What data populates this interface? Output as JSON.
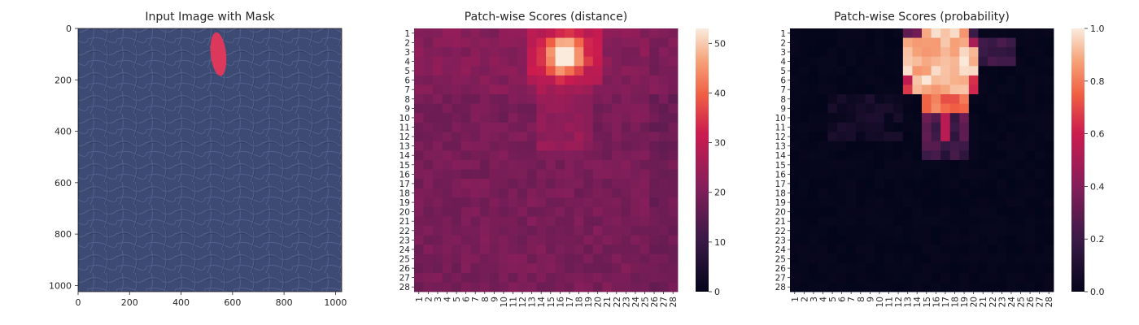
{
  "chart_data": [
    {
      "type": "image",
      "title": "Input Image with Mask",
      "xlim": [
        0,
        1024
      ],
      "ylim": [
        1024,
        0
      ],
      "x_ticks": [
        "0",
        "200",
        "400",
        "600",
        "800",
        "1000"
      ],
      "x_tick_values": [
        0,
        200,
        400,
        600,
        800,
        1000
      ],
      "y_ticks": [
        "0",
        "200",
        "400",
        "600",
        "800",
        "1000"
      ],
      "y_tick_values": [
        0,
        200,
        400,
        600,
        800,
        1000
      ],
      "image_color": "#3d4a74",
      "mask_color": "#e8365a",
      "mask_region": {
        "cx": 545,
        "cy": 100,
        "rx": 30,
        "ry": 85
      }
    },
    {
      "type": "heatmap",
      "title": "Patch-wise Scores (distance)",
      "x_labels": [
        "1",
        "2",
        "3",
        "4",
        "5",
        "6",
        "7",
        "8",
        "9",
        "10",
        "11",
        "12",
        "13",
        "14",
        "15",
        "16",
        "17",
        "18",
        "19",
        "20",
        "21",
        "22",
        "23",
        "24",
        "25",
        "26",
        "27",
        "28"
      ],
      "y_labels": [
        "1",
        "2",
        "3",
        "4",
        "5",
        "6",
        "7",
        "8",
        "9",
        "10",
        "11",
        "12",
        "13",
        "14",
        "15",
        "16",
        "17",
        "18",
        "19",
        "20",
        "21",
        "22",
        "23",
        "24",
        "25",
        "26",
        "27",
        "28"
      ],
      "colorbar": {
        "min": 0,
        "max": 53,
        "ticks": [
          0,
          10,
          20,
          30,
          40,
          50
        ],
        "tick_labels": [
          "0",
          "10",
          "20",
          "30",
          "40",
          "50"
        ]
      },
      "values_description": "Mostly 18-24 across the grid; hot region near columns 13-19, rows 1-7 peaking ~53 at (row 3, col 16)."
    },
    {
      "type": "heatmap",
      "title": "Patch-wise Scores (probability)",
      "x_labels": [
        "1",
        "2",
        "3",
        "4",
        "5",
        "6",
        "7",
        "8",
        "9",
        "10",
        "11",
        "12",
        "13",
        "14",
        "15",
        "16",
        "17",
        "18",
        "19",
        "20",
        "21",
        "22",
        "23",
        "24",
        "25",
        "26",
        "27",
        "28"
      ],
      "y_labels": [
        "1",
        "2",
        "3",
        "4",
        "5",
        "6",
        "7",
        "8",
        "9",
        "10",
        "11",
        "12",
        "13",
        "14",
        "15",
        "16",
        "17",
        "18",
        "19",
        "20",
        "21",
        "22",
        "23",
        "24",
        "25",
        "26",
        "27",
        "28"
      ],
      "colorbar": {
        "min": 0.0,
        "max": 1.0,
        "ticks": [
          0.0,
          0.2,
          0.4,
          0.6,
          0.8,
          1.0
        ],
        "tick_labels": [
          "0.0",
          "0.2",
          "0.4",
          "0.6",
          "0.8",
          "1.0"
        ]
      },
      "values_description": "Near 0 everywhere except columns 13-20, rows 1-7 (~0.9-1.0) with a tail down to row 14."
    }
  ]
}
